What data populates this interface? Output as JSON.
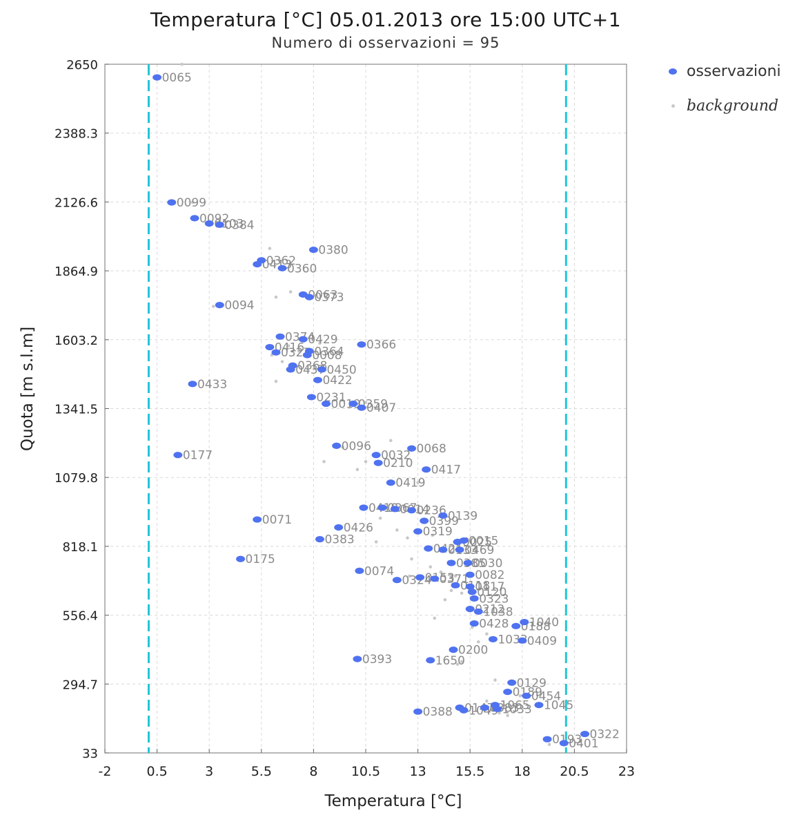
{
  "chart_data": {
    "type": "scatter",
    "title": "Temperatura [°C] 05.01.2013 ore 15:00 UTC+1",
    "subtitle": "Numero di osservazioni = 95",
    "xlabel": "Temperatura [°C]",
    "ylabel": "Quota [m s.l.m]",
    "xlim": [
      -2,
      23
    ],
    "ylim": [
      33,
      2650
    ],
    "xticks": [
      "-2",
      "0.5",
      "3",
      "5.5",
      "8",
      "10.5",
      "13",
      "15.5",
      "18",
      "20.5",
      "23"
    ],
    "yticks": [
      "33",
      "294.7",
      "556.4",
      "818.1",
      "1079.8",
      "1341.5",
      "1603.2",
      "1864.9",
      "2126.6",
      "2388.3",
      "2650"
    ],
    "grid": true,
    "legend_position": "right-top",
    "reference_lines_x": [
      0.1,
      20.1
    ],
    "reference_line_color": "#22c6d6",
    "series": [
      {
        "name": "osservazioni",
        "color": "#4f72f0",
        "marker": "ellipse"
      },
      {
        "name": "background",
        "color": "#c8c8c8",
        "marker": "small-dot"
      }
    ],
    "labeled_points": [
      {
        "label": "0065",
        "x": 0.5,
        "y": 2600
      },
      {
        "label": "0099",
        "x": 1.2,
        "y": 2125
      },
      {
        "label": "0092",
        "x": 2.3,
        "y": 2065
      },
      {
        "label": "0103",
        "x": 3.0,
        "y": 2045
      },
      {
        "label": "0384",
        "x": 3.5,
        "y": 2040
      },
      {
        "label": "0380",
        "x": 8.0,
        "y": 1945
      },
      {
        "label": "0362",
        "x": 5.5,
        "y": 1905
      },
      {
        "label": "0413",
        "x": 5.3,
        "y": 1890
      },
      {
        "label": "0360",
        "x": 6.5,
        "y": 1875
      },
      {
        "label": "0063",
        "x": 7.5,
        "y": 1775
      },
      {
        "label": "0373",
        "x": 7.8,
        "y": 1765
      },
      {
        "label": "0094",
        "x": 3.5,
        "y": 1735
      },
      {
        "label": "0374",
        "x": 6.4,
        "y": 1615
      },
      {
        "label": "0429",
        "x": 7.5,
        "y": 1605
      },
      {
        "label": "0366",
        "x": 10.3,
        "y": 1585
      },
      {
        "label": "0416",
        "x": 5.9,
        "y": 1575
      },
      {
        "label": "0327",
        "x": 6.2,
        "y": 1555
      },
      {
        "label": "0364",
        "x": 7.8,
        "y": 1560
      },
      {
        "label": "0008",
        "x": 7.7,
        "y": 1545
      },
      {
        "label": "0368",
        "x": 7.0,
        "y": 1505
      },
      {
        "label": "0437",
        "x": 6.9,
        "y": 1490
      },
      {
        "label": "0450",
        "x": 8.4,
        "y": 1490
      },
      {
        "label": "0422",
        "x": 8.2,
        "y": 1450
      },
      {
        "label": "0433",
        "x": 2.2,
        "y": 1435
      },
      {
        "label": "0231",
        "x": 7.9,
        "y": 1385
      },
      {
        "label": "0019",
        "x": 8.6,
        "y": 1360
      },
      {
        "label": "0359",
        "x": 9.9,
        "y": 1360
      },
      {
        "label": "0407",
        "x": 10.3,
        "y": 1345
      },
      {
        "label": "0096",
        "x": 9.1,
        "y": 1200
      },
      {
        "label": "0068",
        "x": 12.7,
        "y": 1190
      },
      {
        "label": "0032",
        "x": 11.0,
        "y": 1165
      },
      {
        "label": "0177",
        "x": 1.5,
        "y": 1165
      },
      {
        "label": "0210",
        "x": 11.1,
        "y": 1135
      },
      {
        "label": "0417",
        "x": 13.4,
        "y": 1110
      },
      {
        "label": "0419",
        "x": 11.7,
        "y": 1060
      },
      {
        "label": "0410",
        "x": 10.4,
        "y": 965
      },
      {
        "label": "0367",
        "x": 11.3,
        "y": 965
      },
      {
        "label": "0014",
        "x": 11.9,
        "y": 960
      },
      {
        "label": "0236",
        "x": 12.7,
        "y": 955
      },
      {
        "label": "0139",
        "x": 14.2,
        "y": 935
      },
      {
        "label": "0071",
        "x": 5.3,
        "y": 920
      },
      {
        "label": "0399",
        "x": 13.3,
        "y": 915
      },
      {
        "label": "0426",
        "x": 9.2,
        "y": 890
      },
      {
        "label": "0319",
        "x": 13.0,
        "y": 875
      },
      {
        "label": "0383",
        "x": 8.3,
        "y": 845
      },
      {
        "label": "0015",
        "x": 15.2,
        "y": 840
      },
      {
        "label": "0025",
        "x": 14.9,
        "y": 835
      },
      {
        "label": "0421",
        "x": 13.5,
        "y": 810
      },
      {
        "label": "0133",
        "x": 14.2,
        "y": 805
      },
      {
        "label": "0469",
        "x": 15.0,
        "y": 805
      },
      {
        "label": "0175",
        "x": 4.5,
        "y": 770
      },
      {
        "label": "0385",
        "x": 14.6,
        "y": 755
      },
      {
        "label": "0030",
        "x": 15.4,
        "y": 755
      },
      {
        "label": "0074",
        "x": 10.2,
        "y": 725
      },
      {
        "label": "0153",
        "x": 13.1,
        "y": 700
      },
      {
        "label": "0371",
        "x": 13.8,
        "y": 695
      },
      {
        "label": "0082",
        "x": 15.5,
        "y": 710
      },
      {
        "label": "0324",
        "x": 12.0,
        "y": 690
      },
      {
        "label": "0118",
        "x": 14.8,
        "y": 670
      },
      {
        "label": "0117",
        "x": 15.5,
        "y": 665
      },
      {
        "label": "0120",
        "x": 15.6,
        "y": 645
      },
      {
        "label": "0323",
        "x": 15.7,
        "y": 620
      },
      {
        "label": "0212",
        "x": 15.5,
        "y": 580
      },
      {
        "label": "1038",
        "x": 15.9,
        "y": 570
      },
      {
        "label": "1040",
        "x": 18.1,
        "y": 530
      },
      {
        "label": "0428",
        "x": 15.7,
        "y": 525
      },
      {
        "label": "0188",
        "x": 17.7,
        "y": 515
      },
      {
        "label": "1033",
        "x": 16.6,
        "y": 465
      },
      {
        "label": "0409",
        "x": 18.0,
        "y": 460
      },
      {
        "label": "0200",
        "x": 14.7,
        "y": 425
      },
      {
        "label": "0393",
        "x": 10.1,
        "y": 390
      },
      {
        "label": "1650",
        "x": 13.6,
        "y": 385
      },
      {
        "label": "0129",
        "x": 17.5,
        "y": 300
      },
      {
        "label": "0189",
        "x": 17.3,
        "y": 265
      },
      {
        "label": "0454",
        "x": 18.2,
        "y": 250
      },
      {
        "label": "1045",
        "x": 18.8,
        "y": 215
      },
      {
        "label": "1065",
        "x": 16.7,
        "y": 215
      },
      {
        "label": "0147",
        "x": 15.0,
        "y": 205
      },
      {
        "label": "1049",
        "x": 15.2,
        "y": 195
      },
      {
        "label": "0383",
        "x": 16.2,
        "y": 205
      },
      {
        "label": "1033",
        "x": 16.8,
        "y": 200
      },
      {
        "label": "0388",
        "x": 13.0,
        "y": 190
      },
      {
        "label": "0193",
        "x": 19.2,
        "y": 85
      },
      {
        "label": "0322",
        "x": 21.0,
        "y": 105
      },
      {
        "label": "0401",
        "x": 20.0,
        "y": 70
      }
    ],
    "background_points": [
      {
        "x": 1.7,
        "y": 2650
      },
      {
        "x": 2.2,
        "y": 2125
      },
      {
        "x": 5.9,
        "y": 1950
      },
      {
        "x": 6.9,
        "y": 1785
      },
      {
        "x": 6.2,
        "y": 1765
      },
      {
        "x": 3.2,
        "y": 1730
      },
      {
        "x": 6.8,
        "y": 1580
      },
      {
        "x": 7.3,
        "y": 1560
      },
      {
        "x": 6.0,
        "y": 1545
      },
      {
        "x": 6.5,
        "y": 1520
      },
      {
        "x": 6.2,
        "y": 1445
      },
      {
        "x": 8.3,
        "y": 1590
      },
      {
        "x": 10.5,
        "y": 1365
      },
      {
        "x": 11.7,
        "y": 1220
      },
      {
        "x": 9.4,
        "y": 1195
      },
      {
        "x": 8.5,
        "y": 1140
      },
      {
        "x": 10.5,
        "y": 1140
      },
      {
        "x": 10.1,
        "y": 1110
      },
      {
        "x": 13.0,
        "y": 1060
      },
      {
        "x": 11.2,
        "y": 925
      },
      {
        "x": 12.0,
        "y": 880
      },
      {
        "x": 13.7,
        "y": 860
      },
      {
        "x": 12.5,
        "y": 850
      },
      {
        "x": 11.0,
        "y": 835
      },
      {
        "x": 12.7,
        "y": 770
      },
      {
        "x": 13.6,
        "y": 740
      },
      {
        "x": 14.1,
        "y": 720
      },
      {
        "x": 12.6,
        "y": 705
      },
      {
        "x": 14.8,
        "y": 705
      },
      {
        "x": 14.6,
        "y": 650
      },
      {
        "x": 15.1,
        "y": 640
      },
      {
        "x": 14.3,
        "y": 615
      },
      {
        "x": 13.8,
        "y": 545
      },
      {
        "x": 15.6,
        "y": 510
      },
      {
        "x": 16.3,
        "y": 485
      },
      {
        "x": 15.9,
        "y": 455
      },
      {
        "x": 15.1,
        "y": 380
      },
      {
        "x": 14.9,
        "y": 370
      },
      {
        "x": 16.7,
        "y": 310
      },
      {
        "x": 17.9,
        "y": 250
      },
      {
        "x": 16.3,
        "y": 230
      },
      {
        "x": 16.9,
        "y": 185
      },
      {
        "x": 17.3,
        "y": 175
      },
      {
        "x": 19.3,
        "y": 65
      }
    ]
  },
  "legend": {
    "obs_label": "osservazioni",
    "bg_label": "background"
  }
}
